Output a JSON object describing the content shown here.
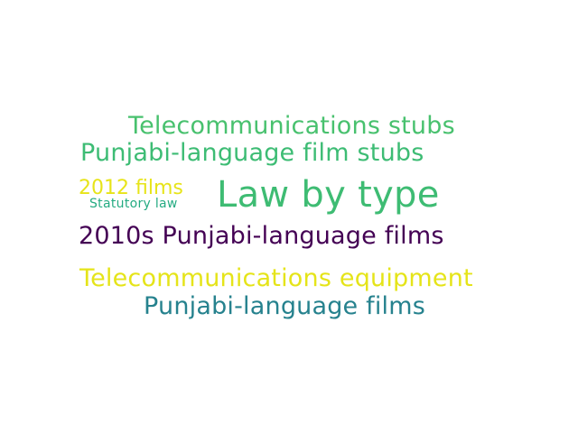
{
  "words": [
    {
      "id": "telecom-stubs",
      "text": "Telecommunications stubs",
      "color": "#48c16e"
    },
    {
      "id": "punjabi-stubs",
      "text": "Punjabi-language film stubs",
      "color": "#3dbc74"
    },
    {
      "id": "2012-films",
      "text": "2012 films",
      "color": "#e7e419"
    },
    {
      "id": "statutory",
      "text": "Statutory law",
      "color": "#25ab82"
    },
    {
      "id": "law-by-type",
      "text": "Law by type",
      "color": "#3ebc73"
    },
    {
      "id": "2010s",
      "text": "2010s Punjabi-language films",
      "color": "#440154"
    },
    {
      "id": "telecom-equip",
      "text": "Telecommunications equipment",
      "color": "#e5e419"
    },
    {
      "id": "punjabi-films",
      "text": "Punjabi-language films",
      "color": "#26828e"
    }
  ]
}
